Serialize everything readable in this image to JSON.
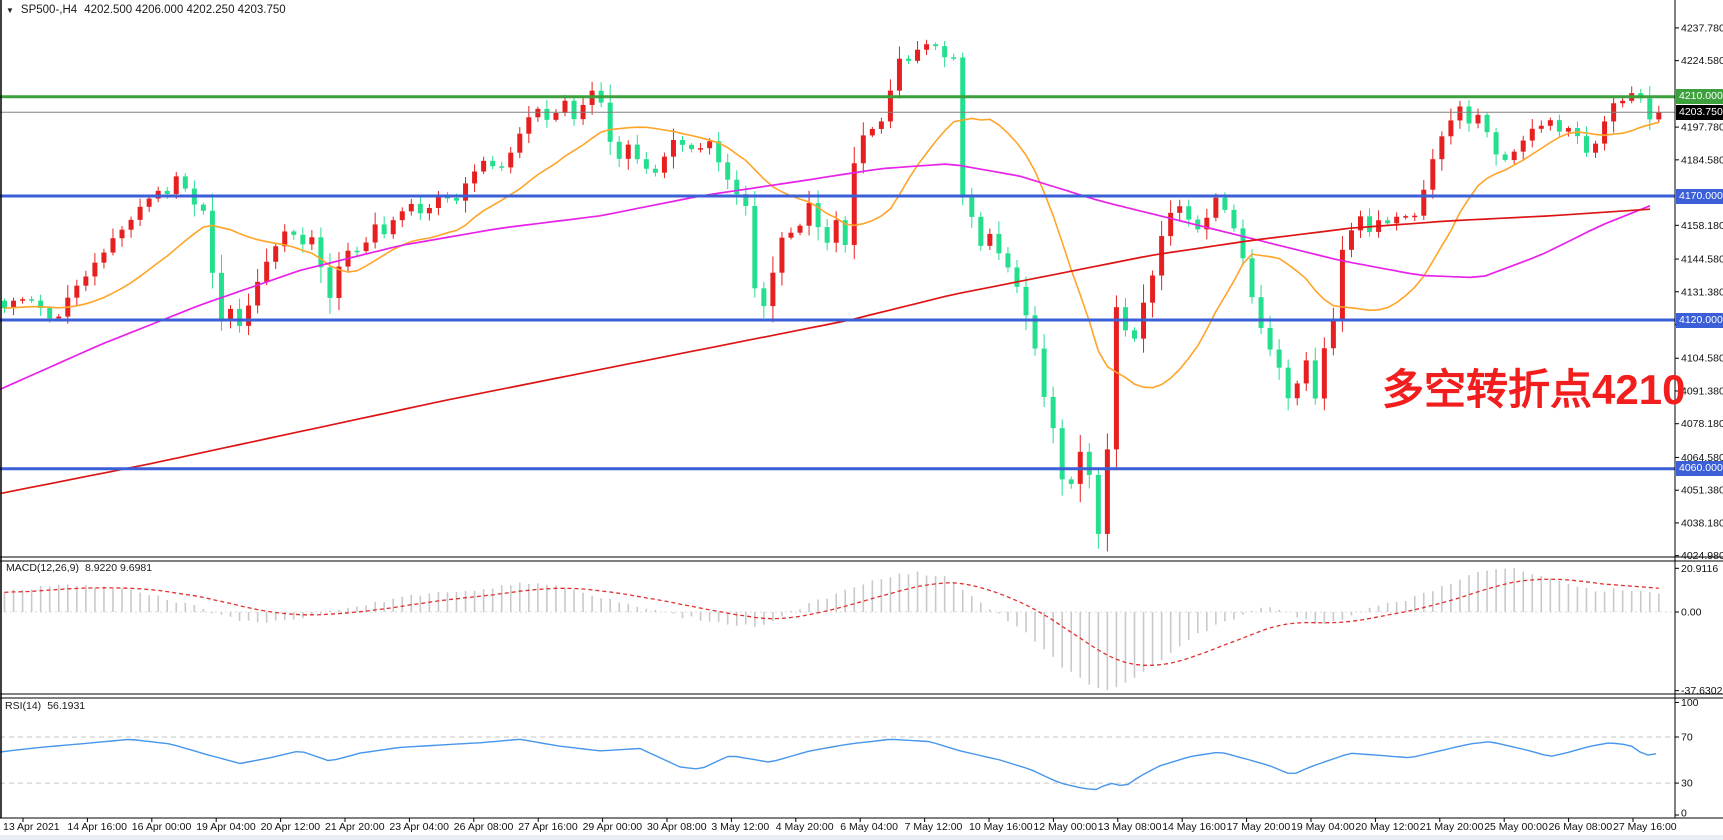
{
  "window": {
    "symbol_period": "SP500-,H4",
    "ohlc_text": "4202.500 4206.000 4202.250 4203.750",
    "dropdown_icon": "symbol-dropdown"
  },
  "colors": {
    "bull_candle": "#e62020",
    "bear_candle": "#24df8e",
    "ma_fast_orange": "#ffa428",
    "ma_mid_magenta": "#e922e9",
    "ma_slow_red": "#de1414",
    "level_green": "#3ca03c",
    "level_blue": "#3b5fd7",
    "current_price_gray": "#808080",
    "macd_histogram": "#c9c9c9",
    "macd_signal": "#e03030",
    "rsi_line": "#4696ec",
    "annotation_red": "#f21d1d",
    "axis_text": "#111111"
  },
  "price_axis": {
    "labels": [
      {
        "text": "4237.780",
        "price": 4237.78
      },
      {
        "text": "4224.580",
        "price": 4224.58
      },
      {
        "text": "4197.780",
        "price": 4197.78
      },
      {
        "text": "4184.580",
        "price": 4184.58
      },
      {
        "text": "4158.180",
        "price": 4158.18
      },
      {
        "text": "4144.580",
        "price": 4144.58
      },
      {
        "text": "4131.380",
        "price": 4131.38
      },
      {
        "text": "4118.180",
        "price": 4118.18
      },
      {
        "text": "4104.580",
        "price": 4104.58
      },
      {
        "text": "4091.380",
        "price": 4091.38
      },
      {
        "text": "4078.180",
        "price": 4078.18
      },
      {
        "text": "4064.580",
        "price": 4064.58
      },
      {
        "text": "4051.380",
        "price": 4051.38
      },
      {
        "text": "4038.180",
        "price": 4038.18
      },
      {
        "text": "4024.980",
        "price": 4024.98
      }
    ],
    "tags": [
      {
        "text": "4210.000",
        "price": 4210.0,
        "bg": "#3ca03c"
      },
      {
        "text": "4203.750",
        "price": 4203.75,
        "bg": "#000000"
      },
      {
        "text": "4170.000",
        "price": 4170.0,
        "bg": "#3b5fd7"
      },
      {
        "text": "4120.000",
        "price": 4120.0,
        "bg": "#3b5fd7"
      },
      {
        "text": "4060.000",
        "price": 4060.0,
        "bg": "#3b5fd7"
      }
    ]
  },
  "hlines": [
    {
      "price": 4210.0,
      "color": "#3ca03c",
      "width": 3
    },
    {
      "price": 4170.0,
      "color": "#3b5fd7",
      "width": 3
    },
    {
      "price": 4120.0,
      "color": "#3b5fd7",
      "width": 3
    },
    {
      "price": 4060.0,
      "color": "#3b5fd7",
      "width": 3
    },
    {
      "price": 4203.75,
      "color": "#808080",
      "width": 1
    }
  ],
  "indicators": {
    "macd": {
      "label": "MACD(12,26,9)",
      "values": "8.9220 9.6981",
      "axis_labels": [
        {
          "text": "20.9116",
          "value": 20.9116
        },
        {
          "text": "0.00",
          "value": 0
        },
        {
          "text": "-37.6302",
          "value": -37.6302
        }
      ]
    },
    "rsi": {
      "label": "RSI(14)",
      "value": "56.1931",
      "axis_labels": [
        {
          "text": "100",
          "value": 100
        },
        {
          "text": "70",
          "value": 70
        },
        {
          "text": "30",
          "value": 30
        },
        {
          "text": "0",
          "value": 0
        }
      ],
      "levels": [
        70,
        30
      ]
    }
  },
  "time_axis": {
    "labels": [
      "13 Apr 2021",
      "14 Apr 16:00",
      "16 Apr 00:00",
      "19 Apr 04:00",
      "20 Apr 12:00",
      "21 Apr 20:00",
      "23 Apr 04:00",
      "26 Apr 08:00",
      "27 Apr 16:00",
      "29 Apr 00:00",
      "30 Apr 08:00",
      "3 May 12:00",
      "4 May 20:00",
      "6 May 04:00",
      "7 May 12:00",
      "10 May 16:00",
      "12 May 00:00",
      "13 May 08:00",
      "14 May 16:00",
      "17 May 20:00",
      "19 May 04:00",
      "20 May 12:00",
      "21 May 20:00",
      "25 May 00:00",
      "26 May 08:00",
      "27 May 16:00"
    ]
  },
  "annotation": {
    "text": "多空转折点4210",
    "color": "#f21d1d"
  },
  "chart_data": {
    "type": "candlestick",
    "symbol": "SP500-",
    "timeframe": "H4",
    "title": "SP500-,H4",
    "current_ohlc": {
      "open": 4202.5,
      "high": 4206.0,
      "low": 4202.25,
      "close": 4203.75
    },
    "y_range": [
      4024.98,
      4249.0
    ],
    "horizontal_levels": [
      4210.0,
      4170.0,
      4120.0,
      4060.0
    ],
    "current_price": 4203.75,
    "close_waypoints": [
      [
        0,
        4122
      ],
      [
        18,
        4130
      ],
      [
        36,
        4126
      ],
      [
        54,
        4118
      ],
      [
        72,
        4132
      ],
      [
        90,
        4140
      ],
      [
        108,
        4150
      ],
      [
        126,
        4158
      ],
      [
        140,
        4166
      ],
      [
        155,
        4172
      ],
      [
        168,
        4170
      ],
      [
        178,
        4180
      ],
      [
        192,
        4168
      ],
      [
        205,
        4164
      ],
      [
        214,
        4134
      ],
      [
        222,
        4120
      ],
      [
        232,
        4126
      ],
      [
        240,
        4118
      ],
      [
        250,
        4128
      ],
      [
        262,
        4140
      ],
      [
        275,
        4150
      ],
      [
        290,
        4158
      ],
      [
        300,
        4150
      ],
      [
        312,
        4154
      ],
      [
        322,
        4140
      ],
      [
        330,
        4128
      ],
      [
        340,
        4144
      ],
      [
        352,
        4150
      ],
      [
        362,
        4146
      ],
      [
        374,
        4160
      ],
      [
        384,
        4155
      ],
      [
        396,
        4162
      ],
      [
        410,
        4168
      ],
      [
        424,
        4162
      ],
      [
        440,
        4170
      ],
      [
        455,
        4168
      ],
      [
        470,
        4178
      ],
      [
        485,
        4184
      ],
      [
        500,
        4180
      ],
      [
        512,
        4188
      ],
      [
        524,
        4198
      ],
      [
        535,
        4206
      ],
      [
        545,
        4200
      ],
      [
        555,
        4204
      ],
      [
        565,
        4208
      ],
      [
        575,
        4200
      ],
      [
        588,
        4212
      ],
      [
        598,
        4214
      ],
      [
        608,
        4194
      ],
      [
        618,
        4184
      ],
      [
        628,
        4190
      ],
      [
        640,
        4184
      ],
      [
        652,
        4178
      ],
      [
        665,
        4186
      ],
      [
        676,
        4194
      ],
      [
        686,
        4190
      ],
      [
        698,
        4188
      ],
      [
        710,
        4192
      ],
      [
        722,
        4180
      ],
      [
        734,
        4172
      ],
      [
        745,
        4168
      ],
      [
        756,
        4128
      ],
      [
        766,
        4126
      ],
      [
        776,
        4144
      ],
      [
        786,
        4160
      ],
      [
        796,
        4150
      ],
      [
        806,
        4170
      ],
      [
        816,
        4160
      ],
      [
        826,
        4150
      ],
      [
        836,
        4160
      ],
      [
        844,
        4146
      ],
      [
        856,
        4190
      ],
      [
        866,
        4196
      ],
      [
        876,
        4198
      ],
      [
        884,
        4200
      ],
      [
        892,
        4216
      ],
      [
        899,
        4226
      ],
      [
        906,
        4222
      ],
      [
        913,
        4230
      ],
      [
        921,
        4228
      ],
      [
        929,
        4233
      ],
      [
        937,
        4230
      ],
      [
        945,
        4226
      ],
      [
        953,
        4232
      ],
      [
        961,
        4170
      ],
      [
        971,
        4162
      ],
      [
        981,
        4150
      ],
      [
        991,
        4155
      ],
      [
        1001,
        4145
      ],
      [
        1011,
        4140
      ],
      [
        1019,
        4130
      ],
      [
        1027,
        4120
      ],
      [
        1035,
        4108
      ],
      [
        1043,
        4090
      ],
      [
        1051,
        4082
      ],
      [
        1059,
        4060
      ],
      [
        1067,
        4048
      ],
      [
        1074,
        4058
      ],
      [
        1082,
        4070
      ],
      [
        1089,
        4058
      ],
      [
        1095,
        4036
      ],
      [
        1101,
        4031
      ],
      [
        1109,
        4078
      ],
      [
        1117,
        4128
      ],
      [
        1125,
        4116
      ],
      [
        1133,
        4110
      ],
      [
        1141,
        4124
      ],
      [
        1151,
        4136
      ],
      [
        1159,
        4150
      ],
      [
        1167,
        4160
      ],
      [
        1177,
        4168
      ],
      [
        1187,
        4162
      ],
      [
        1197,
        4156
      ],
      [
        1207,
        4162
      ],
      [
        1217,
        4170
      ],
      [
        1227,
        4164
      ],
      [
        1237,
        4154
      ],
      [
        1247,
        4138
      ],
      [
        1257,
        4120
      ],
      [
        1267,
        4112
      ],
      [
        1277,
        4100
      ],
      [
        1285,
        4106
      ],
      [
        1292,
        4066
      ],
      [
        1298,
        4098
      ],
      [
        1306,
        4104
      ],
      [
        1312,
        4108
      ],
      [
        1318,
        4072
      ],
      [
        1325,
        4112
      ],
      [
        1333,
        4120
      ],
      [
        1341,
        4146
      ],
      [
        1351,
        4156
      ],
      [
        1361,
        4162
      ],
      [
        1371,
        4154
      ],
      [
        1381,
        4162
      ],
      [
        1391,
        4158
      ],
      [
        1401,
        4164
      ],
      [
        1411,
        4158
      ],
      [
        1421,
        4168
      ],
      [
        1431,
        4182
      ],
      [
        1441,
        4194
      ],
      [
        1451,
        4200
      ],
      [
        1461,
        4206
      ],
      [
        1471,
        4198
      ],
      [
        1481,
        4204
      ],
      [
        1491,
        4190
      ],
      [
        1501,
        4182
      ],
      [
        1511,
        4186
      ],
      [
        1521,
        4192
      ],
      [
        1531,
        4196
      ],
      [
        1541,
        4198
      ],
      [
        1551,
        4200
      ],
      [
        1561,
        4196
      ],
      [
        1571,
        4198
      ],
      [
        1581,
        4192
      ],
      [
        1591,
        4184
      ],
      [
        1601,
        4198
      ],
      [
        1611,
        4206
      ],
      [
        1621,
        4208
      ],
      [
        1631,
        4212
      ],
      [
        1641,
        4209
      ],
      [
        1651,
        4200
      ],
      [
        1662,
        4203.75
      ]
    ],
    "ma_mid_magenta_waypoints": [
      [
        0,
        4092
      ],
      [
        100,
        4110
      ],
      [
        200,
        4126
      ],
      [
        300,
        4140
      ],
      [
        400,
        4150
      ],
      [
        500,
        4157
      ],
      [
        600,
        4162
      ],
      [
        700,
        4170
      ],
      [
        800,
        4176
      ],
      [
        880,
        4181
      ],
      [
        950,
        4183
      ],
      [
        1020,
        4178
      ],
      [
        1100,
        4168
      ],
      [
        1180,
        4160
      ],
      [
        1260,
        4152
      ],
      [
        1340,
        4144
      ],
      [
        1420,
        4138
      ],
      [
        1480,
        4137
      ],
      [
        1540,
        4146
      ],
      [
        1600,
        4158
      ],
      [
        1662,
        4168
      ]
    ],
    "ma_slow_red_waypoints": [
      [
        0,
        4050
      ],
      [
        150,
        4062
      ],
      [
        300,
        4075
      ],
      [
        450,
        4088
      ],
      [
        600,
        4100
      ],
      [
        750,
        4112
      ],
      [
        850,
        4120
      ],
      [
        950,
        4130
      ],
      [
        1050,
        4138
      ],
      [
        1150,
        4146
      ],
      [
        1250,
        4152
      ],
      [
        1350,
        4157
      ],
      [
        1450,
        4160
      ],
      [
        1550,
        4162
      ],
      [
        1662,
        4165
      ]
    ],
    "macd_waypoints": [
      [
        0,
        9
      ],
      [
        40,
        12
      ],
      [
        80,
        13
      ],
      [
        120,
        11
      ],
      [
        160,
        7
      ],
      [
        200,
        2
      ],
      [
        230,
        -3
      ],
      [
        260,
        -5
      ],
      [
        290,
        -4
      ],
      [
        320,
        -1
      ],
      [
        360,
        3
      ],
      [
        400,
        7
      ],
      [
        440,
        9
      ],
      [
        480,
        11
      ],
      [
        520,
        14
      ],
      [
        560,
        12
      ],
      [
        600,
        7
      ],
      [
        640,
        2
      ],
      [
        680,
        -2
      ],
      [
        720,
        -5
      ],
      [
        760,
        -7
      ],
      [
        800,
        2
      ],
      [
        840,
        9
      ],
      [
        880,
        16
      ],
      [
        915,
        19
      ],
      [
        945,
        17
      ],
      [
        965,
        10
      ],
      [
        990,
        2
      ],
      [
        1015,
        -6
      ],
      [
        1040,
        -16
      ],
      [
        1060,
        -25
      ],
      [
        1080,
        -32
      ],
      [
        1095,
        -36
      ],
      [
        1110,
        -37
      ],
      [
        1130,
        -33
      ],
      [
        1150,
        -26
      ],
      [
        1175,
        -18
      ],
      [
        1200,
        -10
      ],
      [
        1230,
        -4
      ],
      [
        1260,
        2
      ],
      [
        1285,
        1
      ],
      [
        1300,
        -3
      ],
      [
        1320,
        -6
      ],
      [
        1340,
        -4
      ],
      [
        1360,
        0
      ],
      [
        1380,
        3
      ],
      [
        1400,
        5
      ],
      [
        1420,
        8
      ],
      [
        1440,
        12
      ],
      [
        1460,
        16
      ],
      [
        1480,
        19
      ],
      [
        1500,
        21
      ],
      [
        1520,
        20
      ],
      [
        1540,
        18
      ],
      [
        1560,
        15
      ],
      [
        1580,
        12
      ],
      [
        1600,
        10
      ],
      [
        1620,
        11
      ],
      [
        1640,
        10
      ],
      [
        1662,
        8.92
      ]
    ],
    "macd_range": [
      -37.6302,
      20.9116
    ],
    "macd_current": 8.922,
    "macd_signal_current": 9.6981,
    "rsi_waypoints": [
      [
        0,
        57
      ],
      [
        40,
        61
      ],
      [
        80,
        64
      ],
      [
        130,
        68
      ],
      [
        170,
        64
      ],
      [
        210,
        54
      ],
      [
        240,
        47
      ],
      [
        270,
        52
      ],
      [
        300,
        58
      ],
      [
        330,
        49
      ],
      [
        360,
        56
      ],
      [
        400,
        61
      ],
      [
        440,
        63
      ],
      [
        480,
        65
      ],
      [
        520,
        68
      ],
      [
        560,
        62
      ],
      [
        600,
        58
      ],
      [
        640,
        60
      ],
      [
        680,
        44
      ],
      [
        700,
        42
      ],
      [
        730,
        54
      ],
      [
        770,
        48
      ],
      [
        810,
        58
      ],
      [
        850,
        64
      ],
      [
        890,
        68
      ],
      [
        930,
        66
      ],
      [
        960,
        58
      ],
      [
        1000,
        50
      ],
      [
        1030,
        42
      ],
      [
        1060,
        30
      ],
      [
        1080,
        26
      ],
      [
        1095,
        24
      ],
      [
        1110,
        30
      ],
      [
        1125,
        27
      ],
      [
        1140,
        36
      ],
      [
        1160,
        45
      ],
      [
        1190,
        53
      ],
      [
        1220,
        57
      ],
      [
        1250,
        50
      ],
      [
        1270,
        45
      ],
      [
        1292,
        37
      ],
      [
        1310,
        44
      ],
      [
        1330,
        50
      ],
      [
        1350,
        56
      ],
      [
        1380,
        54
      ],
      [
        1410,
        52
      ],
      [
        1440,
        58
      ],
      [
        1470,
        64
      ],
      [
        1490,
        66
      ],
      [
        1510,
        62
      ],
      [
        1530,
        58
      ],
      [
        1550,
        53
      ],
      [
        1570,
        57
      ],
      [
        1590,
        62
      ],
      [
        1610,
        65
      ],
      [
        1630,
        63
      ],
      [
        1645,
        54
      ],
      [
        1662,
        56.2
      ]
    ],
    "rsi_current": 56.1931
  }
}
